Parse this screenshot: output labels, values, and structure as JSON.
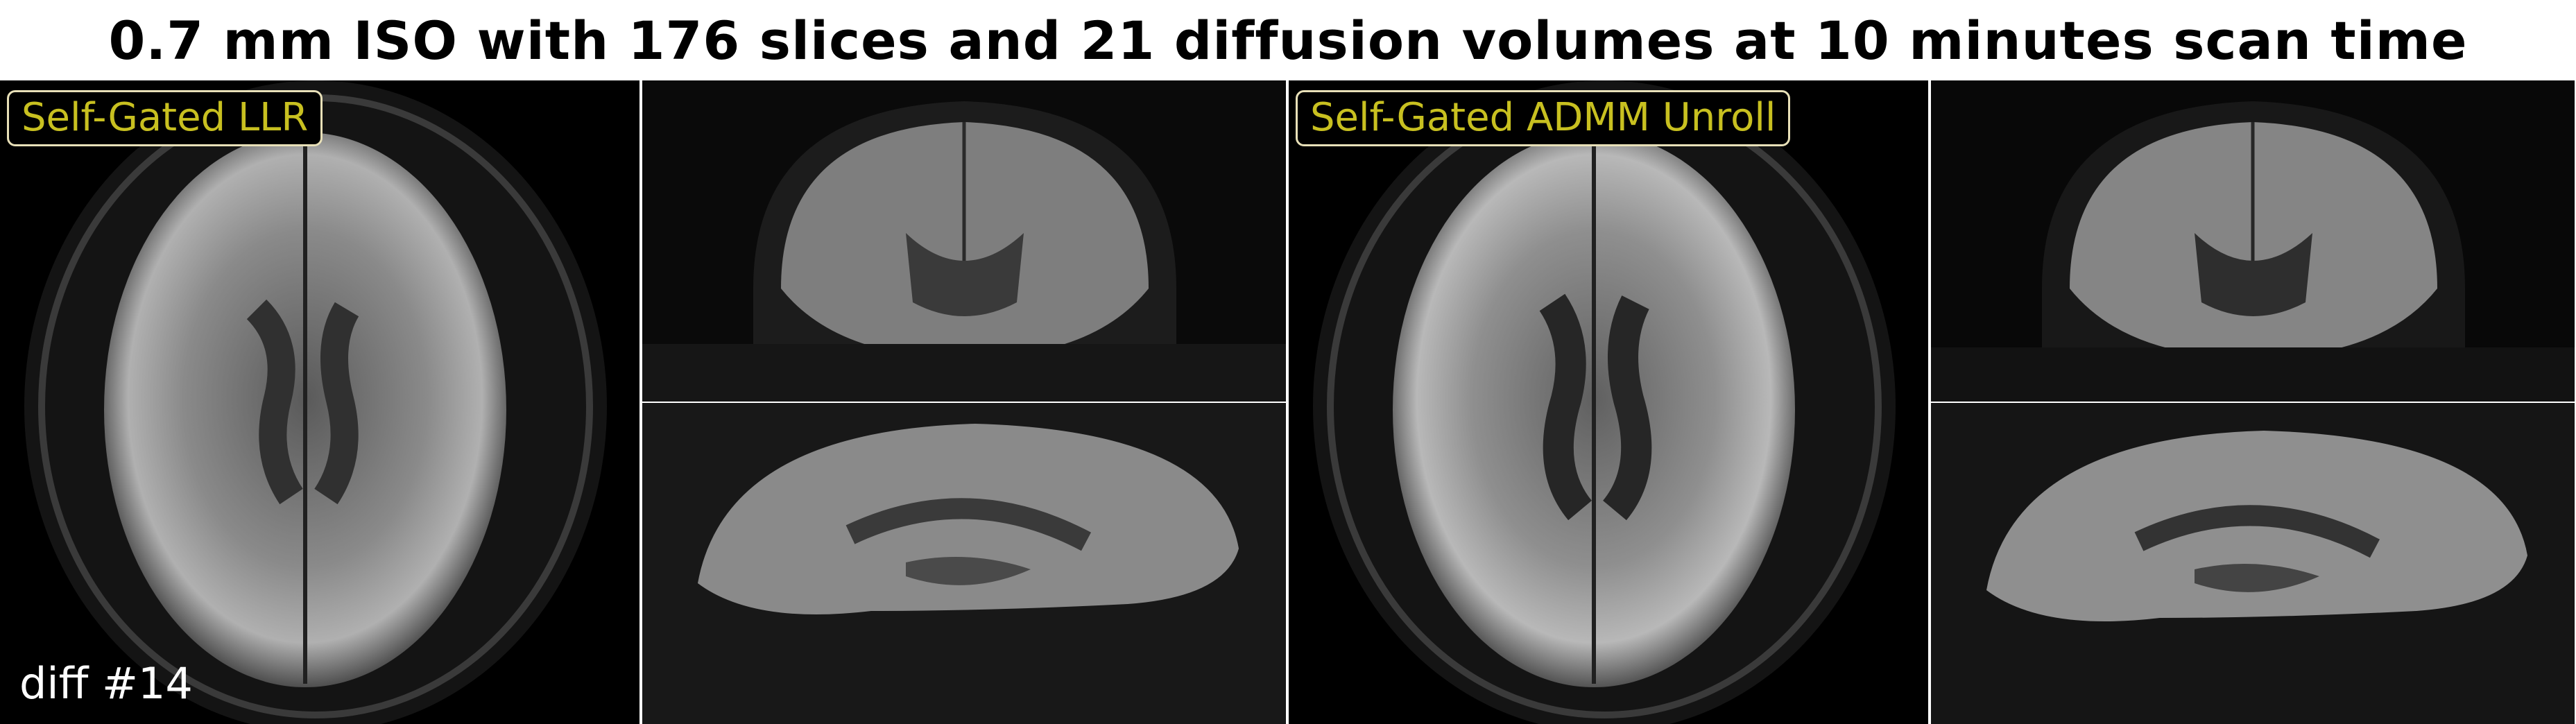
{
  "title": "0.7 mm ISO with 176 slices and 21 diffusion volumes at 10 minutes scan time",
  "methods": [
    {
      "label": "Self-Gated LLR"
    },
    {
      "label": "Self-Gated ADMM Unroll"
    }
  ],
  "volume_label": "diff #14",
  "colors": {
    "label_text": "#c8c020",
    "label_border": "#e8e0b8",
    "background": "#000000"
  }
}
